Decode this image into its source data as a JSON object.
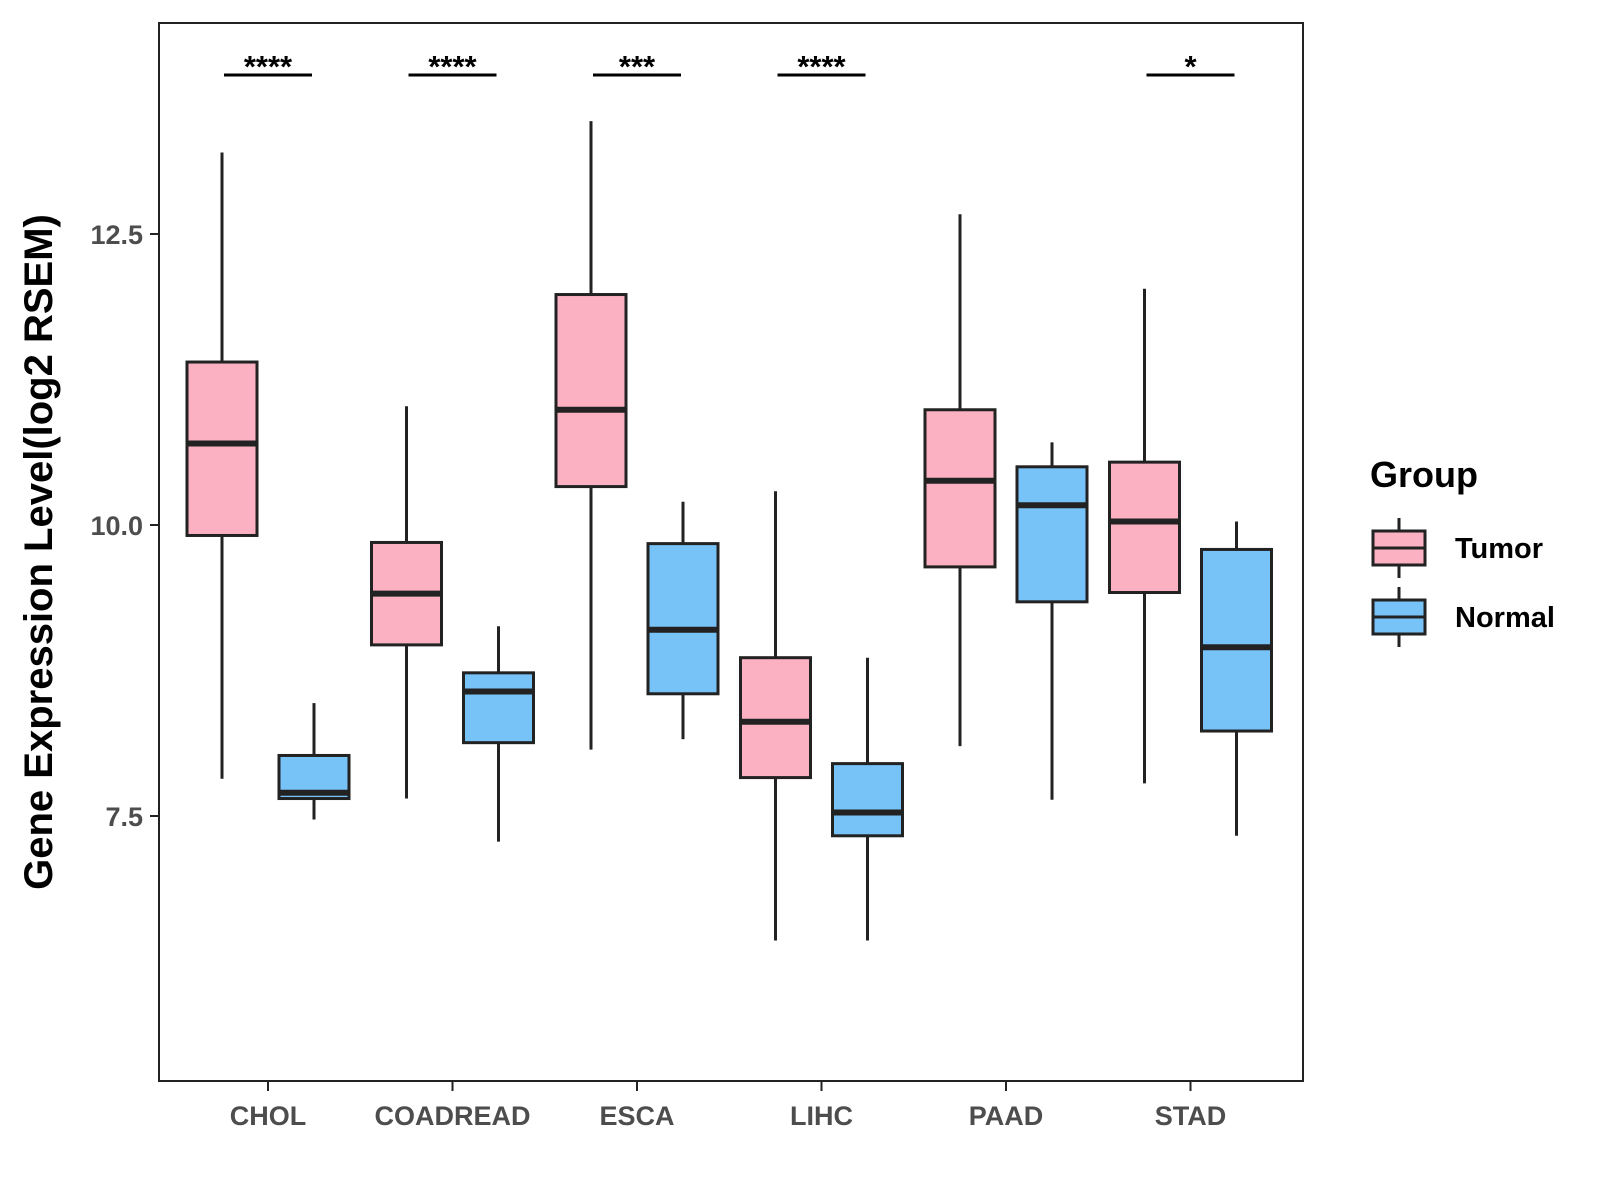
{
  "chart_data": {
    "type": "boxplot",
    "title": "",
    "xlabel": "",
    "ylabel": "Gene Expression Level(log2 RSEM)",
    "ylim": [
      5.2,
      14.3
    ],
    "yticks": [
      7.5,
      10.0,
      12.5
    ],
    "ytick_labels": [
      "7.5",
      "10.0",
      "12.5"
    ],
    "categories": [
      "CHOL",
      "COADREAD",
      "ESCA",
      "LIHC",
      "PAAD",
      "STAD"
    ],
    "legend": {
      "title": "Group",
      "position": "right",
      "entries": [
        {
          "name": "Tumor",
          "color": "#FBB1C2"
        },
        {
          "name": "Normal",
          "color": "#77C2F7"
        }
      ]
    },
    "series": [
      {
        "name": "Tumor",
        "color": "#FBB1C2",
        "boxes": [
          {
            "category": "CHOL",
            "whisker_low": 7.82,
            "q1": 9.91,
            "median": 10.7,
            "q3": 11.4,
            "whisker_high": 13.2
          },
          {
            "category": "COADREAD",
            "whisker_low": 7.65,
            "q1": 8.97,
            "median": 9.41,
            "q3": 9.85,
            "whisker_high": 11.02
          },
          {
            "category": "ESCA",
            "whisker_low": 8.07,
            "q1": 10.33,
            "median": 10.99,
            "q3": 11.98,
            "whisker_high": 13.47
          },
          {
            "category": "LIHC",
            "whisker_low": 6.43,
            "q1": 7.83,
            "median": 8.31,
            "q3": 8.86,
            "whisker_high": 10.29
          },
          {
            "category": "PAAD",
            "whisker_low": 8.1,
            "q1": 9.64,
            "median": 10.38,
            "q3": 10.99,
            "whisker_high": 12.67
          },
          {
            "category": "STAD",
            "whisker_low": 7.78,
            "q1": 9.42,
            "median": 10.03,
            "q3": 10.54,
            "whisker_high": 12.03
          }
        ]
      },
      {
        "name": "Normal",
        "color": "#77C2F7",
        "boxes": [
          {
            "category": "CHOL",
            "whisker_low": 7.47,
            "q1": 7.65,
            "median": 7.7,
            "q3": 8.02,
            "whisker_high": 8.47
          },
          {
            "category": "COADREAD",
            "whisker_low": 7.28,
            "q1": 8.13,
            "median": 8.57,
            "q3": 8.73,
            "whisker_high": 9.13
          },
          {
            "category": "ESCA",
            "whisker_low": 8.16,
            "q1": 8.55,
            "median": 9.1,
            "q3": 9.84,
            "whisker_high": 10.2
          },
          {
            "category": "LIHC",
            "whisker_low": 6.43,
            "q1": 7.33,
            "median": 7.53,
            "q3": 7.95,
            "whisker_high": 8.86
          },
          {
            "category": "PAAD",
            "whisker_low": 7.64,
            "q1": 9.34,
            "median": 10.17,
            "q3": 10.5,
            "whisker_high": 10.71
          },
          {
            "category": "STAD",
            "whisker_low": 7.33,
            "q1": 8.23,
            "median": 8.95,
            "q3": 9.79,
            "whisker_high": 10.03
          }
        ]
      }
    ],
    "significance": [
      {
        "category": "CHOL",
        "label": "****"
      },
      {
        "category": "COADREAD",
        "label": "****"
      },
      {
        "category": "ESCA",
        "label": "***"
      },
      {
        "category": "LIHC",
        "label": "****"
      },
      {
        "category": "PAAD",
        "label": ""
      },
      {
        "category": "STAD",
        "label": "*"
      }
    ]
  }
}
